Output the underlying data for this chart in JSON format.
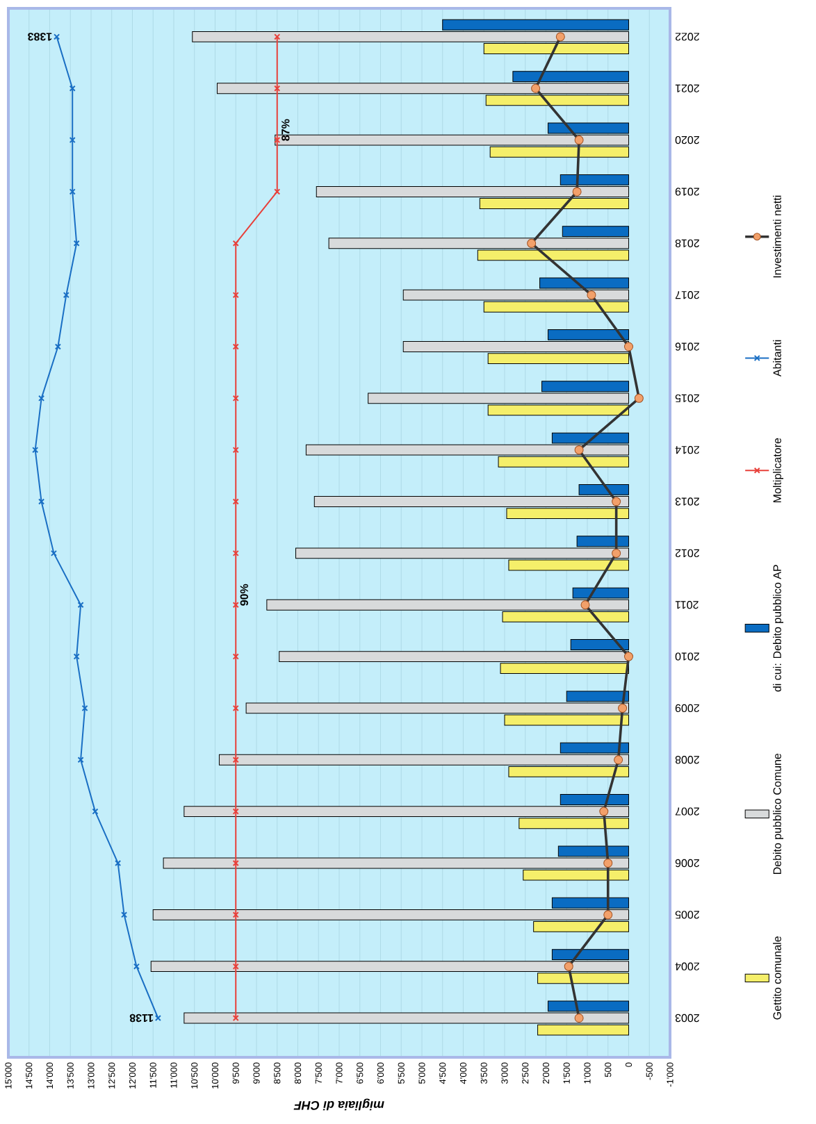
{
  "chart_data": {
    "type": "bar",
    "orientation": "horizontal",
    "xlabel": "migliaia di CHF",
    "categories": [
      "2022",
      "2021",
      "2020",
      "2019",
      "2018",
      "2017",
      "2016",
      "2015",
      "2014",
      "2013",
      "2012",
      "2011",
      "2010",
      "2009",
      "2008",
      "2007",
      "2006",
      "2005",
      "2004",
      "2003"
    ],
    "series": [
      {
        "name": "Gettito comunale",
        "color": "#f5ef6a",
        "values": [
          3500,
          3450,
          3350,
          3600,
          3650,
          3500,
          3400,
          3400,
          3150,
          2950,
          2900,
          3050,
          3100,
          3000,
          2900,
          2650,
          2550,
          2300,
          2200,
          2200
        ]
      },
      {
        "name": "Debito pubblico Comune",
        "color": "#d8dadb",
        "values": [
          10550,
          9950,
          8550,
          7550,
          7250,
          5450,
          5450,
          6300,
          7800,
          7600,
          8050,
          8750,
          8450,
          9250,
          9900,
          10750,
          11250,
          11500,
          11550,
          10750
        ]
      },
      {
        "name": "di cui: Debito pubblico AP",
        "color": "#0a6cc2",
        "values": [
          4500,
          2800,
          1950,
          1650,
          1600,
          2150,
          1950,
          2100,
          1850,
          1200,
          1250,
          1350,
          1400,
          1500,
          1650,
          1650,
          1700,
          1850,
          1850,
          1950
        ]
      },
      {
        "name": "Moltiplicatore",
        "type": "line",
        "marker": "cross",
        "color": "#e8403a",
        "values": [
          8500,
          8500,
          8500,
          8500,
          9500,
          9500,
          9500,
          9500,
          9500,
          9500,
          9500,
          9500,
          9500,
          9500,
          9500,
          9500,
          9500,
          9500,
          9500,
          9500
        ]
      },
      {
        "name": "Abitanti",
        "type": "line",
        "marker": "cross",
        "color": "#1a6fc4",
        "values": [
          13830,
          13450,
          13450,
          13450,
          13350,
          13600,
          13800,
          14200,
          14350,
          14200,
          13900,
          13250,
          13350,
          13150,
          13250,
          12900,
          12350,
          12200,
          11900,
          11380
        ]
      },
      {
        "name": "Investimenti netti",
        "type": "line",
        "marker": "circle",
        "color": "#333333",
        "colors": [
          "#f2a06a",
          "#f2a06a",
          "#f2a06a",
          "#f2a06a",
          "#f2a06a",
          "#f2a06a",
          "#f2a06a",
          "#f2a06a",
          "#f2a06a",
          "#f2a06a",
          "#f2a06a",
          "#f2a06a",
          "#f2a06a",
          "#f2a06a",
          "#f2a06a",
          "#f2a06a",
          "#f2a06a",
          "#f2a06a",
          "#f2a06a",
          "#f2a06a"
        ],
        "values": [
          1650,
          2250,
          1200,
          1250,
          2350,
          900,
          0,
          -250,
          1200,
          300,
          300,
          1050,
          0,
          150,
          250,
          600,
          500,
          500,
          1450,
          1200
        ]
      }
    ],
    "xlim": [
      15000,
      -1000
    ],
    "xticks": [
      {
        "value": 15000,
        "label": "15'000"
      },
      {
        "value": 14500,
        "label": "14'500"
      },
      {
        "value": 14000,
        "label": "14'000"
      },
      {
        "value": 13500,
        "label": "13'500"
      },
      {
        "value": 13000,
        "label": "13'000"
      },
      {
        "value": 12500,
        "label": "12'500"
      },
      {
        "value": 12000,
        "label": "12'000"
      },
      {
        "value": 11500,
        "label": "11'500"
      },
      {
        "value": 11000,
        "label": "11'000"
      },
      {
        "value": 10500,
        "label": "10'500"
      },
      {
        "value": 10000,
        "label": "10'000"
      },
      {
        "value": 9500,
        "label": "9'500"
      },
      {
        "value": 9000,
        "label": "9'000"
      },
      {
        "value": 8500,
        "label": "8'500"
      },
      {
        "value": 8000,
        "label": "8'000"
      },
      {
        "value": 7500,
        "label": "7'500"
      },
      {
        "value": 7000,
        "label": "7'000"
      },
      {
        "value": 6500,
        "label": "6'500"
      },
      {
        "value": 6000,
        "label": "6'000"
      },
      {
        "value": 5500,
        "label": "5'500"
      },
      {
        "value": 5000,
        "label": "5'000"
      },
      {
        "value": 4500,
        "label": "4'500"
      },
      {
        "value": 4000,
        "label": "4'000"
      },
      {
        "value": 3500,
        "label": "3'500"
      },
      {
        "value": 3000,
        "label": "3'000"
      },
      {
        "value": 2500,
        "label": "2'500"
      },
      {
        "value": 2000,
        "label": "2'000"
      },
      {
        "value": 1500,
        "label": "1'500"
      },
      {
        "value": 1000,
        "label": "1'000"
      },
      500,
      0,
      -500,
      {
        "value": -1000,
        "label": "-1'000"
      }
    ],
    "grid": "x",
    "legend": "right",
    "annotations": [
      {
        "text": "1138",
        "x": 11380,
        "y": "2003"
      },
      {
        "text": "1383",
        "x": 13830,
        "y": "2022"
      },
      {
        "text": "90%",
        "x": 9500,
        "y": "2011"
      },
      {
        "text": "87%",
        "x": 8500,
        "y": "2020"
      }
    ]
  }
}
